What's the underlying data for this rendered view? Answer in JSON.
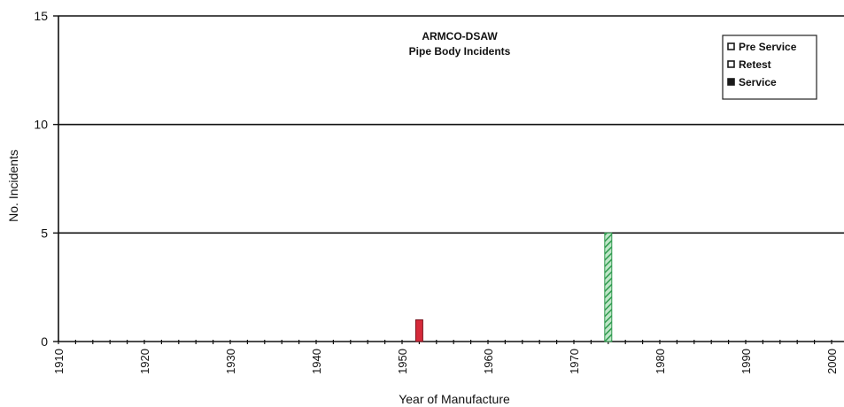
{
  "chart_data": {
    "type": "bar",
    "title": "ARMCO-DSAW",
    "subtitle": "Pipe Body Incidents",
    "xlabel": "Year of Manufacture",
    "ylabel": "No. Incidents",
    "xlim": [
      1910,
      2000
    ],
    "ylim": [
      0,
      15
    ],
    "x_ticks": [
      "1910",
      "1920",
      "1930",
      "1940",
      "1950",
      "1960",
      "1970",
      "1980",
      "1990",
      "2000"
    ],
    "y_ticks": [
      "0",
      "5",
      "10",
      "15"
    ],
    "grid": "horizontal",
    "legend_position": "top-right",
    "series": [
      {
        "name": "Pre Service",
        "color": "#1a1a1a",
        "pattern": "solid",
        "points": []
      },
      {
        "name": "Retest",
        "color": "#3daa5a",
        "pattern": "hatched",
        "points": [
          {
            "x": 1974,
            "y": 5
          }
        ]
      },
      {
        "name": "Service",
        "color": "#d62a3a",
        "pattern": "solid",
        "points": [
          {
            "x": 1952,
            "y": 1
          }
        ]
      }
    ]
  }
}
